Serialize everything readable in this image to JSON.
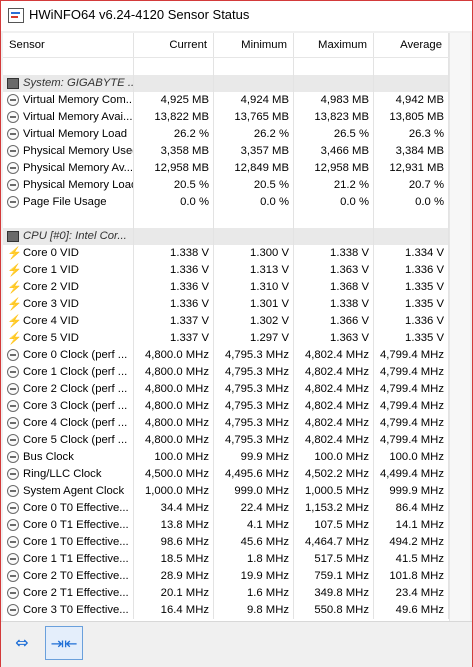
{
  "window": {
    "title": "HWiNFO64 v6.24-4120 Sensor Status"
  },
  "columns": [
    "Sensor",
    "Current",
    "Minimum",
    "Maximum",
    "Average"
  ],
  "rows": [
    {
      "type": "blank"
    },
    {
      "type": "group",
      "icon": "chip-icon",
      "name": "System: GIGABYTE ..."
    },
    {
      "type": "data",
      "icon": "clock-icon",
      "name": "Virtual Memory Com...",
      "current": "4,925 MB",
      "minimum": "4,924 MB",
      "maximum": "4,983 MB",
      "average": "4,942 MB"
    },
    {
      "type": "data",
      "icon": "clock-icon",
      "name": "Virtual Memory Avai...",
      "current": "13,822 MB",
      "minimum": "13,765 MB",
      "maximum": "13,823 MB",
      "average": "13,805 MB"
    },
    {
      "type": "data",
      "icon": "clock-icon",
      "name": "Virtual Memory Load",
      "current": "26.2 %",
      "minimum": "26.2 %",
      "maximum": "26.5 %",
      "average": "26.3 %"
    },
    {
      "type": "data",
      "icon": "clock-icon",
      "name": "Physical Memory Used",
      "current": "3,358 MB",
      "minimum": "3,357 MB",
      "maximum": "3,466 MB",
      "average": "3,384 MB"
    },
    {
      "type": "data",
      "icon": "clock-icon",
      "name": "Physical Memory Av...",
      "current": "12,958 MB",
      "minimum": "12,849 MB",
      "maximum": "12,958 MB",
      "average": "12,931 MB"
    },
    {
      "type": "data",
      "icon": "clock-icon",
      "name": "Physical Memory Load",
      "current": "20.5 %",
      "minimum": "20.5 %",
      "maximum": "21.2 %",
      "average": "20.7 %"
    },
    {
      "type": "data",
      "icon": "clock-icon",
      "name": "Page File Usage",
      "current": "0.0 %",
      "minimum": "0.0 %",
      "maximum": "0.0 %",
      "average": "0.0 %"
    },
    {
      "type": "blank"
    },
    {
      "type": "group",
      "icon": "chip-icon",
      "name": "CPU [#0]: Intel Cor..."
    },
    {
      "type": "data",
      "icon": "bolt-icon",
      "name": "Core 0 VID",
      "current": "1.338 V",
      "minimum": "1.300 V",
      "maximum": "1.338 V",
      "average": "1.334 V"
    },
    {
      "type": "data",
      "icon": "bolt-icon",
      "name": "Core 1 VID",
      "current": "1.336 V",
      "minimum": "1.313 V",
      "maximum": "1.363 V",
      "average": "1.336 V"
    },
    {
      "type": "data",
      "icon": "bolt-icon",
      "name": "Core 2 VID",
      "current": "1.336 V",
      "minimum": "1.310 V",
      "maximum": "1.368 V",
      "average": "1.335 V"
    },
    {
      "type": "data",
      "icon": "bolt-icon",
      "name": "Core 3 VID",
      "current": "1.336 V",
      "minimum": "1.301 V",
      "maximum": "1.338 V",
      "average": "1.335 V"
    },
    {
      "type": "data",
      "icon": "bolt-icon",
      "name": "Core 4 VID",
      "current": "1.337 V",
      "minimum": "1.302 V",
      "maximum": "1.366 V",
      "average": "1.336 V"
    },
    {
      "type": "data",
      "icon": "bolt-icon",
      "name": "Core 5 VID",
      "current": "1.337 V",
      "minimum": "1.297 V",
      "maximum": "1.363 V",
      "average": "1.335 V"
    },
    {
      "type": "data",
      "icon": "clock-icon",
      "name": "Core 0 Clock (perf ...",
      "current": "4,800.0 MHz",
      "minimum": "4,795.3 MHz",
      "maximum": "4,802.4 MHz",
      "average": "4,799.4 MHz"
    },
    {
      "type": "data",
      "icon": "clock-icon",
      "name": "Core 1 Clock (perf ...",
      "current": "4,800.0 MHz",
      "minimum": "4,795.3 MHz",
      "maximum": "4,802.4 MHz",
      "average": "4,799.4 MHz"
    },
    {
      "type": "data",
      "icon": "clock-icon",
      "name": "Core 2 Clock (perf ...",
      "current": "4,800.0 MHz",
      "minimum": "4,795.3 MHz",
      "maximum": "4,802.4 MHz",
      "average": "4,799.4 MHz"
    },
    {
      "type": "data",
      "icon": "clock-icon",
      "name": "Core 3 Clock (perf ...",
      "current": "4,800.0 MHz",
      "minimum": "4,795.3 MHz",
      "maximum": "4,802.4 MHz",
      "average": "4,799.4 MHz"
    },
    {
      "type": "data",
      "icon": "clock-icon",
      "name": "Core 4 Clock (perf ...",
      "current": "4,800.0 MHz",
      "minimum": "4,795.3 MHz",
      "maximum": "4,802.4 MHz",
      "average": "4,799.4 MHz"
    },
    {
      "type": "data",
      "icon": "clock-icon",
      "name": "Core 5 Clock (perf ...",
      "current": "4,800.0 MHz",
      "minimum": "4,795.3 MHz",
      "maximum": "4,802.4 MHz",
      "average": "4,799.4 MHz"
    },
    {
      "type": "data",
      "icon": "clock-icon",
      "name": "Bus Clock",
      "current": "100.0 MHz",
      "minimum": "99.9 MHz",
      "maximum": "100.0 MHz",
      "average": "100.0 MHz"
    },
    {
      "type": "data",
      "icon": "clock-icon",
      "name": "Ring/LLC Clock",
      "current": "4,500.0 MHz",
      "minimum": "4,495.6 MHz",
      "maximum": "4,502.2 MHz",
      "average": "4,499.4 MHz"
    },
    {
      "type": "data",
      "icon": "clock-icon",
      "name": "System Agent Clock",
      "current": "1,000.0 MHz",
      "minimum": "999.0 MHz",
      "maximum": "1,000.5 MHz",
      "average": "999.9 MHz"
    },
    {
      "type": "data",
      "icon": "clock-icon",
      "name": "Core 0 T0 Effective...",
      "current": "34.4 MHz",
      "minimum": "22.4 MHz",
      "maximum": "1,153.2 MHz",
      "average": "86.4 MHz"
    },
    {
      "type": "data",
      "icon": "clock-icon",
      "name": "Core 0 T1 Effective...",
      "current": "13.8 MHz",
      "minimum": "4.1 MHz",
      "maximum": "107.5 MHz",
      "average": "14.1 MHz"
    },
    {
      "type": "data",
      "icon": "clock-icon",
      "name": "Core 1 T0 Effective...",
      "current": "98.6 MHz",
      "minimum": "45.6 MHz",
      "maximum": "4,464.7 MHz",
      "average": "494.2 MHz"
    },
    {
      "type": "data",
      "icon": "clock-icon",
      "name": "Core 1 T1 Effective...",
      "current": "18.5 MHz",
      "minimum": "1.8 MHz",
      "maximum": "517.5 MHz",
      "average": "41.5 MHz"
    },
    {
      "type": "data",
      "icon": "clock-icon",
      "name": "Core 2 T0 Effective...",
      "current": "28.9 MHz",
      "minimum": "19.9 MHz",
      "maximum": "759.1 MHz",
      "average": "101.8 MHz"
    },
    {
      "type": "data",
      "icon": "clock-icon",
      "name": "Core 2 T1 Effective...",
      "current": "20.1 MHz",
      "minimum": "1.6 MHz",
      "maximum": "349.8 MHz",
      "average": "23.4 MHz"
    },
    {
      "type": "data",
      "icon": "clock-icon",
      "name": "Core 3 T0 Effective...",
      "current": "16.4 MHz",
      "minimum": "9.8 MHz",
      "maximum": "550.8 MHz",
      "average": "49.6 MHz"
    }
  ],
  "toolbar": {
    "buttons": [
      {
        "icon": "expand-arrows-icon",
        "glyph": "⇔"
      },
      {
        "icon": "collapse-arrows-icon",
        "glyph": "⇥⇤"
      }
    ]
  },
  "colors": {
    "window_border": "#d33a3a",
    "group_row": "#e9e9e9",
    "accent": "#1f6fd6"
  }
}
